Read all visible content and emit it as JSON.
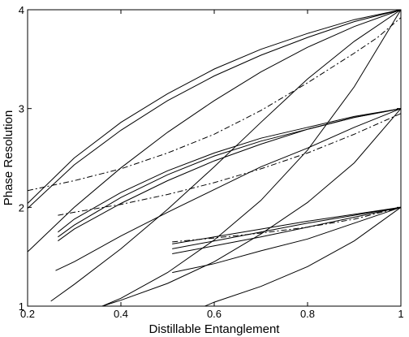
{
  "chart_data": {
    "type": "line",
    "xlabel": "Distillable Entanglement",
    "ylabel": "Phase Resolution",
    "xlim": [
      0.2,
      1.0
    ],
    "ylim": [
      1,
      4
    ],
    "xticks": [
      0.2,
      0.4,
      0.6,
      0.8,
      1.0
    ],
    "xtick_labels": [
      "0.2",
      "0.4",
      "0.6",
      "0.8",
      "1"
    ],
    "yticks": [
      1,
      2,
      3,
      4
    ],
    "ytick_labels": [
      "1",
      "2",
      "3",
      "4"
    ],
    "grid": false,
    "series": [
      {
        "style": "solid",
        "x": [
          0.2,
          0.3,
          0.4,
          0.5,
          0.6,
          0.7,
          0.8,
          0.9,
          1.0
        ],
        "y": [
          2.04,
          2.5,
          2.86,
          3.15,
          3.4,
          3.6,
          3.76,
          3.9,
          4.0
        ]
      },
      {
        "style": "solid",
        "x": [
          0.2,
          0.3,
          0.4,
          0.5,
          0.6,
          0.7,
          0.8,
          0.9,
          1.0
        ],
        "y": [
          1.99,
          2.43,
          2.78,
          3.08,
          3.33,
          3.54,
          3.72,
          3.88,
          4.0
        ]
      },
      {
        "style": "solid",
        "x": [
          0.2,
          0.3,
          0.4,
          0.5,
          0.6,
          0.7,
          0.8,
          0.9,
          1.0
        ],
        "y": [
          1.55,
          2.0,
          2.4,
          2.76,
          3.08,
          3.37,
          3.62,
          3.83,
          4.0
        ]
      },
      {
        "style": "solid",
        "x": [
          0.25,
          0.3,
          0.4,
          0.5,
          0.6,
          0.7,
          0.8,
          0.9,
          1.0
        ],
        "y": [
          1.05,
          1.22,
          1.58,
          1.98,
          2.41,
          2.86,
          3.3,
          3.68,
          4.0
        ]
      },
      {
        "style": "solid",
        "x": [
          0.36,
          0.4,
          0.5,
          0.6,
          0.7,
          0.8,
          0.9,
          1.0
        ],
        "y": [
          1.0,
          1.08,
          1.34,
          1.67,
          2.07,
          2.58,
          3.22,
          4.0
        ]
      },
      {
        "style": "dashdot",
        "x": [
          0.2,
          0.3,
          0.4,
          0.5,
          0.6,
          0.7,
          0.8,
          0.9,
          0.95,
          1.0
        ],
        "y": [
          2.17,
          2.27,
          2.39,
          2.55,
          2.74,
          2.98,
          3.26,
          3.56,
          3.72,
          3.92
        ]
      },
      {
        "style": "solid",
        "x": [
          0.265,
          0.3,
          0.4,
          0.5,
          0.6,
          0.7,
          0.8,
          0.9,
          1.0
        ],
        "y": [
          1.75,
          1.88,
          2.15,
          2.37,
          2.55,
          2.7,
          2.81,
          2.92,
          3.0
        ]
      },
      {
        "style": "solid",
        "x": [
          0.265,
          0.3,
          0.4,
          0.5,
          0.6,
          0.7,
          0.8,
          0.9,
          1.0
        ],
        "y": [
          1.7,
          1.82,
          2.1,
          2.33,
          2.52,
          2.67,
          2.79,
          2.91,
          3.0
        ]
      },
      {
        "style": "solid",
        "x": [
          0.265,
          0.3,
          0.4,
          0.5,
          0.6,
          0.7,
          0.8,
          0.9,
          1.0
        ],
        "y": [
          1.66,
          1.78,
          2.04,
          2.27,
          2.47,
          2.64,
          2.79,
          2.91,
          3.0
        ]
      },
      {
        "style": "solid",
        "x": [
          0.26,
          0.3,
          0.4,
          0.5,
          0.6,
          0.7,
          0.8,
          0.9,
          1.0
        ],
        "y": [
          1.36,
          1.45,
          1.71,
          1.95,
          2.18,
          2.41,
          2.6,
          2.81,
          3.0
        ]
      },
      {
        "style": "solid",
        "x": [
          0.36,
          0.4,
          0.5,
          0.6,
          0.7,
          0.8,
          0.9,
          1.0
        ],
        "y": [
          1.0,
          1.06,
          1.23,
          1.45,
          1.73,
          2.05,
          2.45,
          3.0
        ]
      },
      {
        "style": "dashdot",
        "x": [
          0.265,
          0.3,
          0.4,
          0.5,
          0.6,
          0.7,
          0.8,
          0.9,
          1.0
        ],
        "y": [
          1.92,
          1.95,
          2.03,
          2.13,
          2.25,
          2.39,
          2.55,
          2.74,
          2.95
        ]
      },
      {
        "style": "solid",
        "x": [
          0.51,
          0.6,
          0.7,
          0.8,
          0.9,
          1.0
        ],
        "y": [
          1.63,
          1.7,
          1.78,
          1.86,
          1.93,
          2.0
        ]
      },
      {
        "style": "solid",
        "x": [
          0.51,
          0.6,
          0.7,
          0.8,
          0.9,
          1.0
        ],
        "y": [
          1.58,
          1.66,
          1.75,
          1.84,
          1.92,
          2.0
        ]
      },
      {
        "style": "solid",
        "x": [
          0.51,
          0.6,
          0.7,
          0.8,
          0.9,
          1.0
        ],
        "y": [
          1.53,
          1.61,
          1.7,
          1.8,
          1.9,
          2.0
        ]
      },
      {
        "style": "solid",
        "x": [
          0.51,
          0.6,
          0.7,
          0.8,
          0.9,
          1.0
        ],
        "y": [
          1.34,
          1.43,
          1.56,
          1.68,
          1.84,
          2.0
        ]
      },
      {
        "style": "solid",
        "x": [
          0.58,
          0.6,
          0.7,
          0.8,
          0.9,
          1.0
        ],
        "y": [
          1.0,
          1.04,
          1.2,
          1.4,
          1.66,
          2.0
        ]
      },
      {
        "style": "dashdot",
        "x": [
          0.51,
          0.6,
          0.7,
          0.8,
          0.9,
          1.0
        ],
        "y": [
          1.65,
          1.69,
          1.74,
          1.8,
          1.88,
          2.0
        ]
      }
    ]
  }
}
